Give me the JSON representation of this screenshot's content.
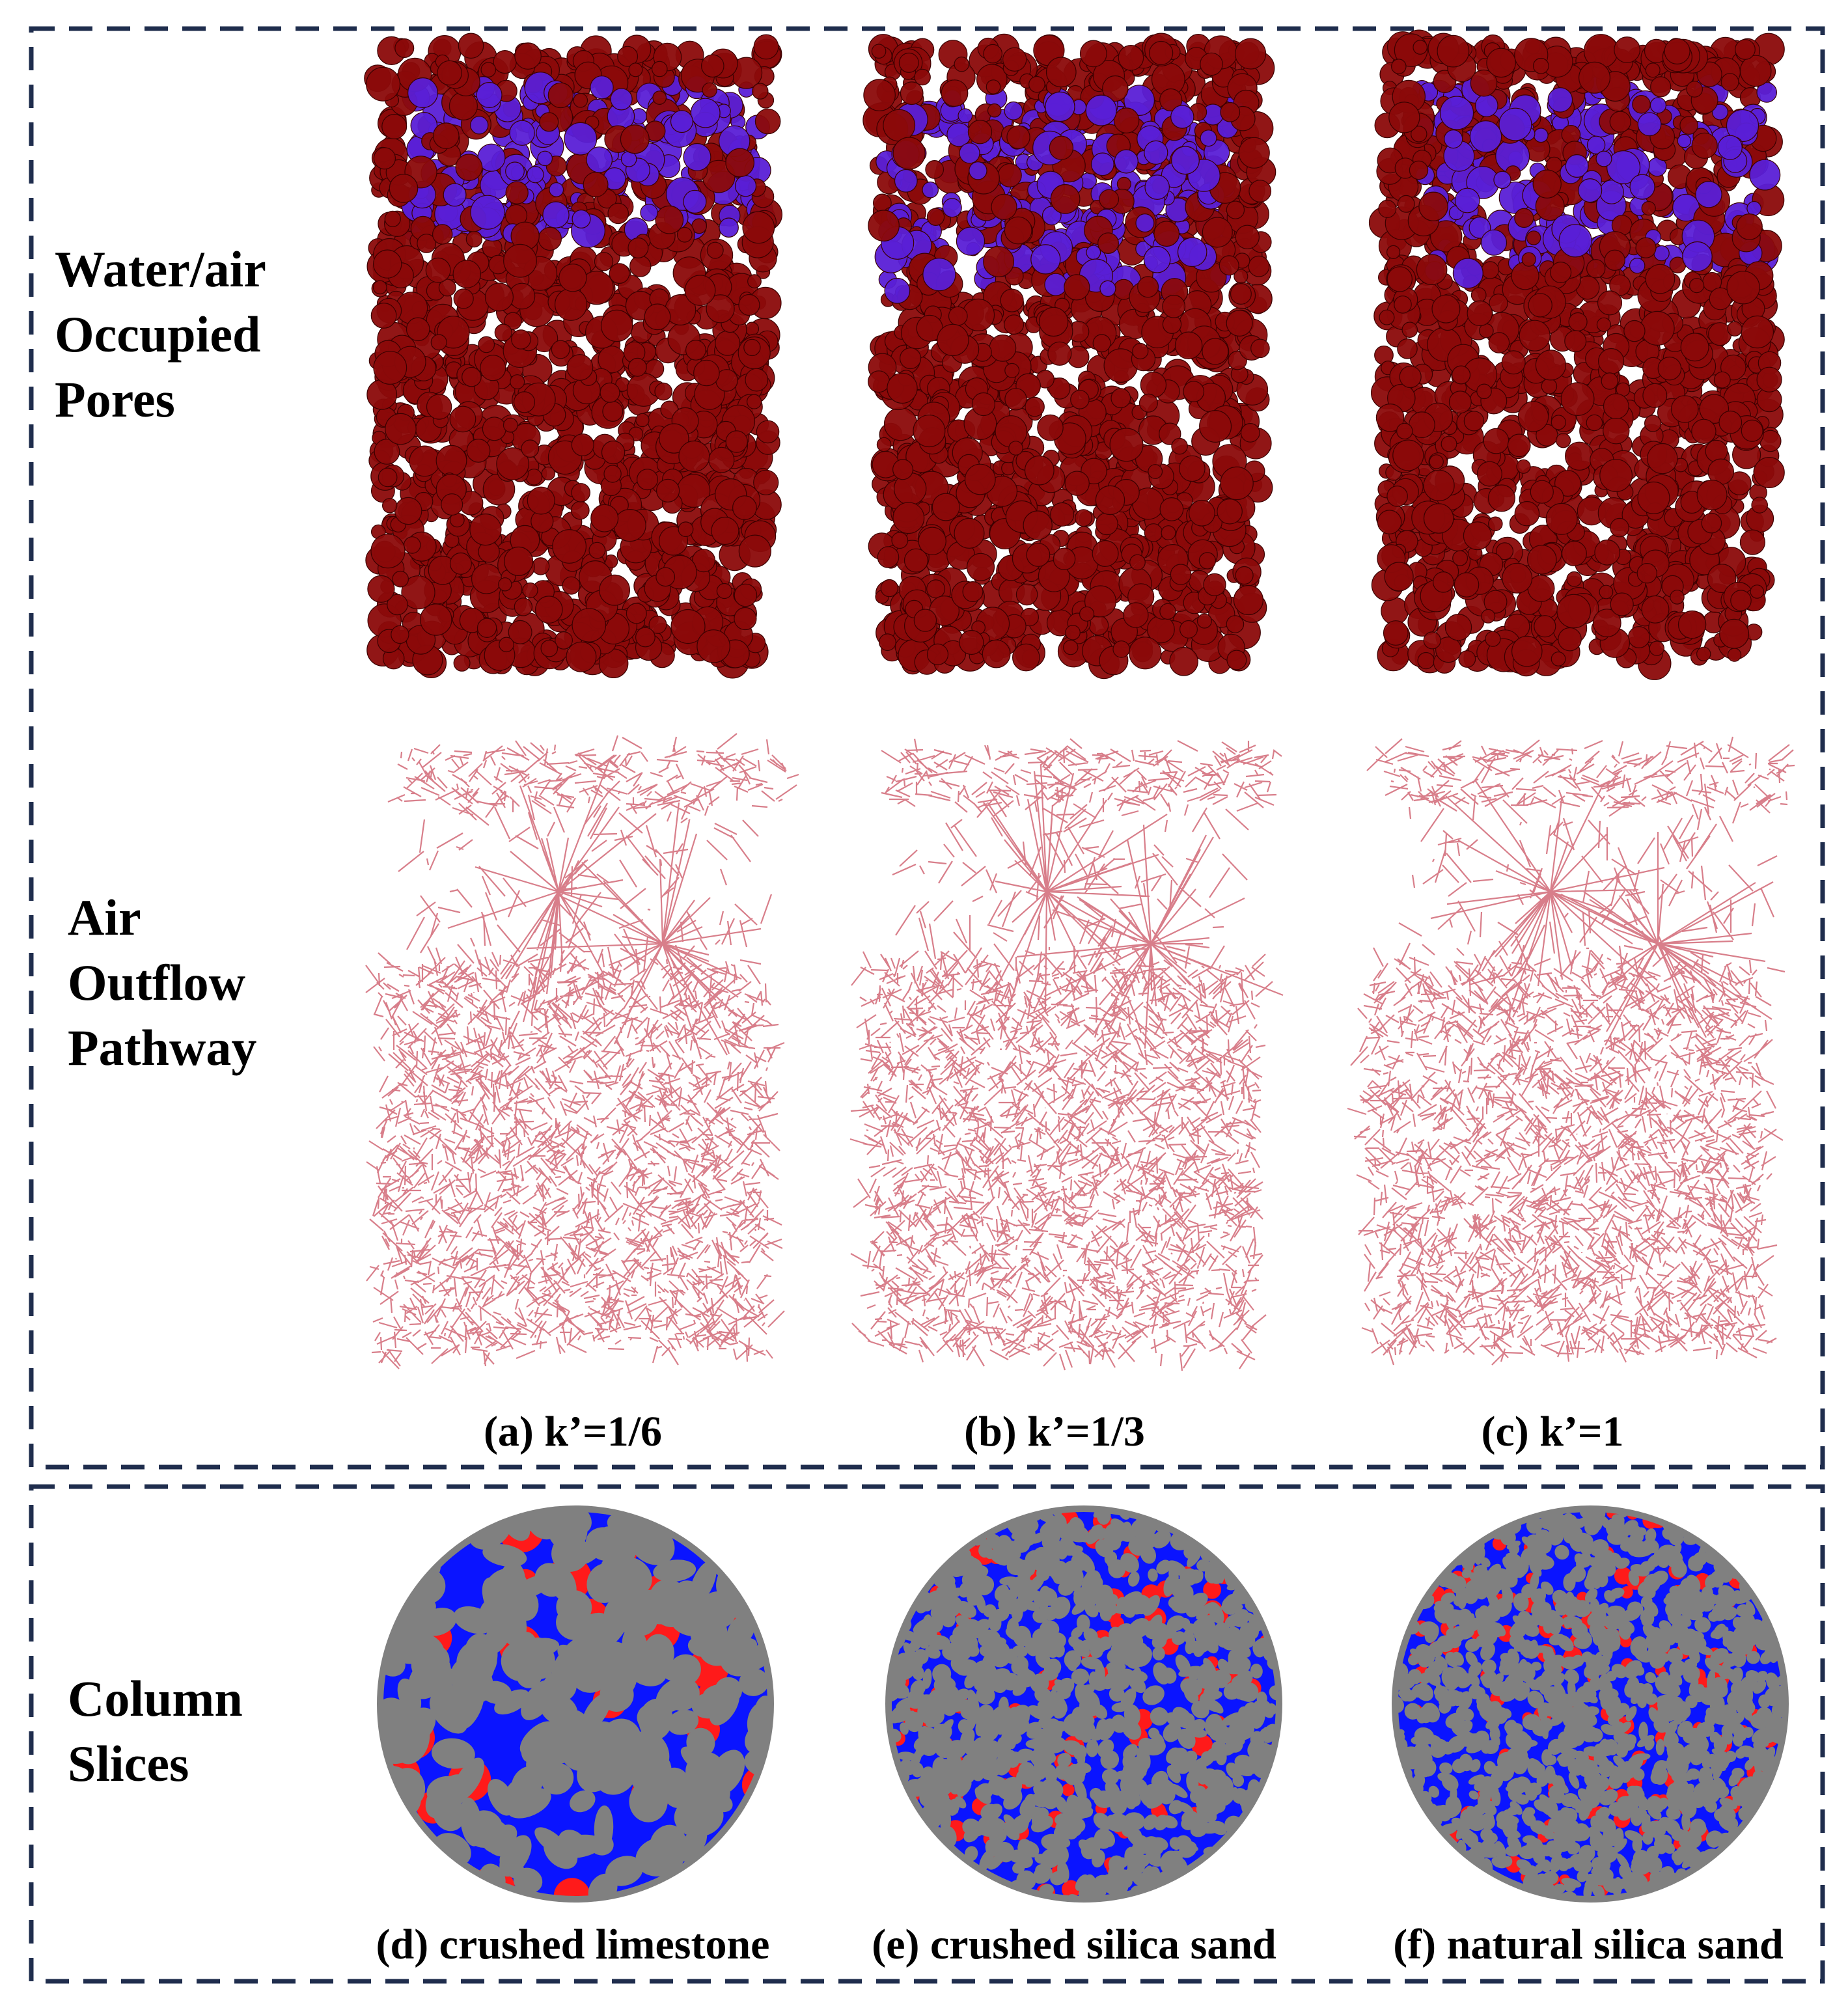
{
  "rows": {
    "pores": [
      "Water/air",
      "Occupied",
      "Pores"
    ],
    "pathway": [
      "Air",
      "Outflow",
      "Pathway"
    ],
    "slices": [
      "Column",
      "Slices"
    ]
  },
  "top_captions": [
    "(a) k’=1/6",
    "(b) k’=1/3",
    "(c) k’=1"
  ],
  "bottom_captions": [
    "(d) crushed limestone",
    "(e) crushed silica sand",
    "(f) natural silica sand"
  ],
  "colors": {
    "frame": "#1f2d4d",
    "air_pore": "#8b0a0a",
    "water_pore": "#5a1fd6",
    "pathway_line": "#b8142a",
    "slice_solid": "#808080",
    "slice_air": "#ff1a1a",
    "slice_water": "#0a14ff"
  }
}
